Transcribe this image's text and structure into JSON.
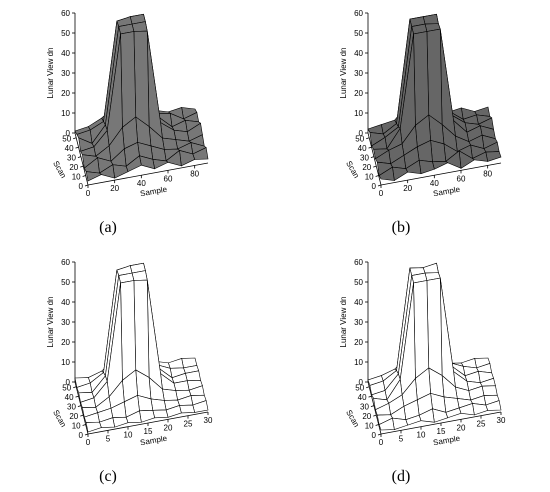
{
  "chart_data": [
    {
      "type": "surface",
      "caption": "(a)",
      "zlabel": "Lunar View dn",
      "xlabel": "Sample",
      "ylabel": "Scan",
      "xlim": [
        0,
        90
      ],
      "xticks": [
        0,
        20,
        40,
        60,
        80
      ],
      "ylim": [
        0,
        55
      ],
      "yticks": [
        0,
        10,
        20,
        30,
        40,
        50
      ],
      "zlim": [
        0,
        60
      ],
      "zticks": [
        0,
        10,
        20,
        30,
        40,
        50,
        60
      ],
      "color": "#777777",
      "z": [
        [
          2,
          4,
          1,
          3,
          5,
          2,
          4,
          1,
          3,
          2
        ],
        [
          3,
          1,
          4,
          2,
          6,
          3,
          1,
          5,
          2,
          4
        ],
        [
          1,
          5,
          2,
          7,
          9,
          6,
          3,
          2,
          4,
          1
        ],
        [
          4,
          2,
          6,
          14,
          18,
          12,
          5,
          3,
          1,
          3
        ],
        [
          2,
          3,
          10,
          57,
          57,
          56,
          9,
          4,
          2,
          5
        ],
        [
          5,
          1,
          9,
          57,
          57,
          57,
          8,
          2,
          4,
          2
        ],
        [
          3,
          4,
          7,
          56,
          57,
          57,
          6,
          5,
          1,
          3
        ],
        [
          1,
          2,
          5,
          10,
          12,
          9,
          4,
          2,
          3,
          1
        ]
      ]
    },
    {
      "type": "surface",
      "caption": "(b)",
      "zlabel": "Lunar View dn",
      "xlabel": "Sample",
      "ylabel": "Scan",
      "xlim": [
        0,
        90
      ],
      "xticks": [
        0,
        20,
        40,
        60,
        80
      ],
      "ylim": [
        0,
        55
      ],
      "yticks": [
        0,
        10,
        20,
        30,
        40,
        50
      ],
      "zlim": [
        0,
        60
      ],
      "zticks": [
        0,
        10,
        20,
        30,
        40,
        50,
        60
      ],
      "color": "#666666",
      "z": [
        [
          3,
          1,
          4,
          2,
          3,
          5,
          1,
          4,
          2,
          3
        ],
        [
          1,
          4,
          2,
          5,
          3,
          2,
          6,
          1,
          3,
          2
        ],
        [
          4,
          2,
          5,
          8,
          10,
          7,
          2,
          4,
          1,
          3
        ],
        [
          2,
          5,
          7,
          15,
          19,
          13,
          6,
          2,
          4,
          1
        ],
        [
          3,
          2,
          11,
          57,
          57,
          57,
          10,
          3,
          5,
          2
        ],
        [
          1,
          4,
          8,
          57,
          57,
          56,
          9,
          4,
          2,
          4
        ],
        [
          4,
          2,
          6,
          57,
          57,
          57,
          7,
          2,
          3,
          1
        ],
        [
          2,
          3,
          4,
          11,
          13,
          10,
          3,
          4,
          1,
          2
        ]
      ]
    },
    {
      "type": "surface",
      "caption": "(c)",
      "zlabel": "Lunar View dn",
      "xlabel": "Sample",
      "ylabel": "Scan",
      "xlim": [
        0,
        30
      ],
      "xticks": [
        0,
        5,
        10,
        15,
        20,
        25,
        30
      ],
      "ylim": [
        0,
        55
      ],
      "yticks": [
        0,
        10,
        20,
        30,
        40,
        50
      ],
      "zlim": [
        0,
        60
      ],
      "zticks": [
        0,
        10,
        20,
        30,
        40,
        50,
        60
      ],
      "color": "#ffffff",
      "z": [
        [
          1,
          2,
          1,
          2,
          1,
          2,
          1,
          2,
          1,
          1
        ],
        [
          2,
          1,
          2,
          1,
          3,
          2,
          1,
          2,
          1,
          2
        ],
        [
          1,
          2,
          3,
          5,
          7,
          4,
          2,
          1,
          2,
          1
        ],
        [
          2,
          1,
          5,
          12,
          16,
          11,
          4,
          2,
          1,
          2
        ],
        [
          1,
          2,
          9,
          57,
          57,
          56,
          8,
          2,
          2,
          1
        ],
        [
          2,
          1,
          8,
          57,
          57,
          57,
          7,
          1,
          2,
          2
        ],
        [
          1,
          2,
          6,
          56,
          57,
          57,
          5,
          2,
          1,
          1
        ],
        [
          2,
          1,
          3,
          8,
          10,
          7,
          3,
          1,
          2,
          1
        ]
      ]
    },
    {
      "type": "surface",
      "caption": "(d)",
      "zlabel": "Lunar View dn",
      "xlabel": "Sample",
      "ylabel": "Scan",
      "xlim": [
        0,
        30
      ],
      "xticks": [
        0,
        5,
        10,
        15,
        20,
        25,
        30
      ],
      "ylim": [
        0,
        55
      ],
      "yticks": [
        0,
        10,
        20,
        30,
        40,
        50
      ],
      "zlim": [
        0,
        60
      ],
      "zticks": [
        0,
        10,
        20,
        30,
        40,
        50,
        60
      ],
      "color": "#ffffff",
      "z": [
        [
          2,
          1,
          2,
          3,
          1,
          2,
          3,
          1,
          2,
          1
        ],
        [
          1,
          3,
          1,
          2,
          4,
          1,
          2,
          3,
          1,
          2
        ],
        [
          2,
          1,
          4,
          6,
          8,
          5,
          3,
          1,
          2,
          1
        ],
        [
          1,
          3,
          6,
          13,
          17,
          12,
          5,
          2,
          3,
          2
        ],
        [
          3,
          1,
          10,
          57,
          57,
          57,
          9,
          3,
          1,
          2
        ],
        [
          1,
          2,
          9,
          57,
          57,
          56,
          8,
          2,
          3,
          1
        ],
        [
          2,
          3,
          7,
          57,
          56,
          57,
          6,
          3,
          1,
          2
        ],
        [
          1,
          2,
          4,
          9,
          11,
          8,
          2,
          1,
          2,
          1
        ]
      ]
    }
  ]
}
